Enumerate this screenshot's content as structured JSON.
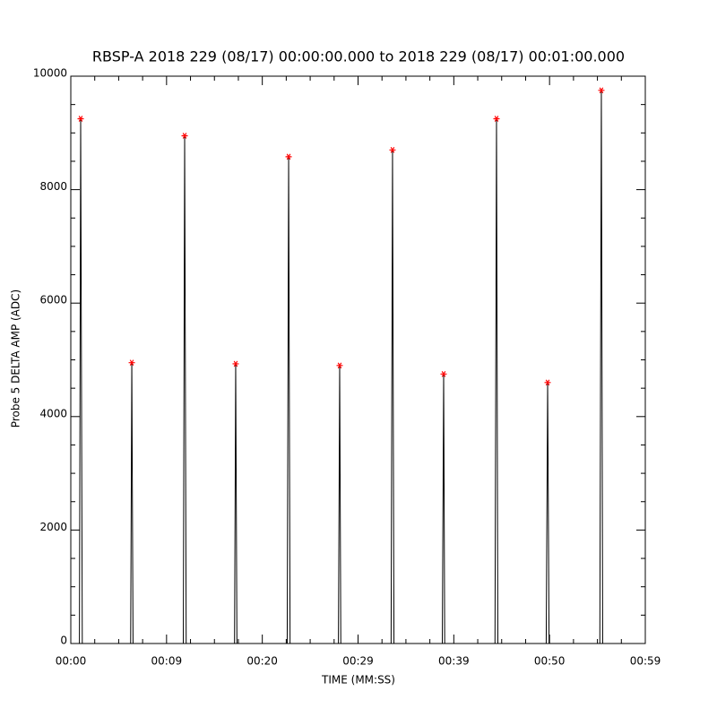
{
  "chart_data": {
    "type": "line",
    "title": "RBSP-A 2018 229 (08/17) 00:00:00.000 to 2018 229 (08/17) 00:01:00.000",
    "x_label": "TIME (MM:SS)",
    "y_label": "Probe 5 DELTA AMP (ADC)",
    "xlim": [
      0,
      60
    ],
    "xticks": [
      {
        "value": 0,
        "label": "00:00"
      },
      {
        "value": 10,
        "label": "00:09"
      },
      {
        "value": 20,
        "label": "00:20"
      },
      {
        "value": 30,
        "label": "00:29"
      },
      {
        "value": 40,
        "label": "00:39"
      },
      {
        "value": 50,
        "label": "00:50"
      },
      {
        "value": 60,
        "label": "00:59"
      }
    ],
    "ylim": [
      0,
      10000
    ],
    "yticks": [
      0,
      2000,
      4000,
      6000,
      8000,
      10000
    ],
    "series": [
      {
        "color": "#000000",
        "x": [
          0.9,
          1.03,
          1.2,
          6.25,
          6.37,
          6.5,
          11.75,
          11.89,
          12.05,
          17.1,
          17.22,
          17.35,
          22.6,
          22.75,
          22.9,
          27.95,
          28.08,
          28.2,
          33.45,
          33.6,
          33.75,
          38.8,
          38.94,
          39.05,
          44.3,
          44.46,
          44.6,
          49.65,
          49.8,
          49.95,
          55.25,
          55.41,
          55.55
        ],
        "values": [
          0,
          9250,
          0,
          0,
          4950,
          0,
          0,
          8950,
          0,
          0,
          4930,
          0,
          0,
          8580,
          0,
          0,
          4900,
          0,
          0,
          8700,
          0,
          0,
          4750,
          0,
          0,
          9250,
          0,
          0,
          4600,
          0,
          0,
          9750,
          0
        ]
      },
      {
        "color": "#ff0000",
        "marker": "asterisk",
        "x": [
          1.03,
          6.37,
          11.89,
          17.22,
          22.75,
          28.08,
          33.6,
          38.94,
          44.46,
          49.8,
          55.41
        ],
        "values": [
          9250,
          4950,
          8950,
          4930,
          8580,
          4900,
          8700,
          4750,
          9250,
          4600,
          9750
        ]
      }
    ]
  }
}
